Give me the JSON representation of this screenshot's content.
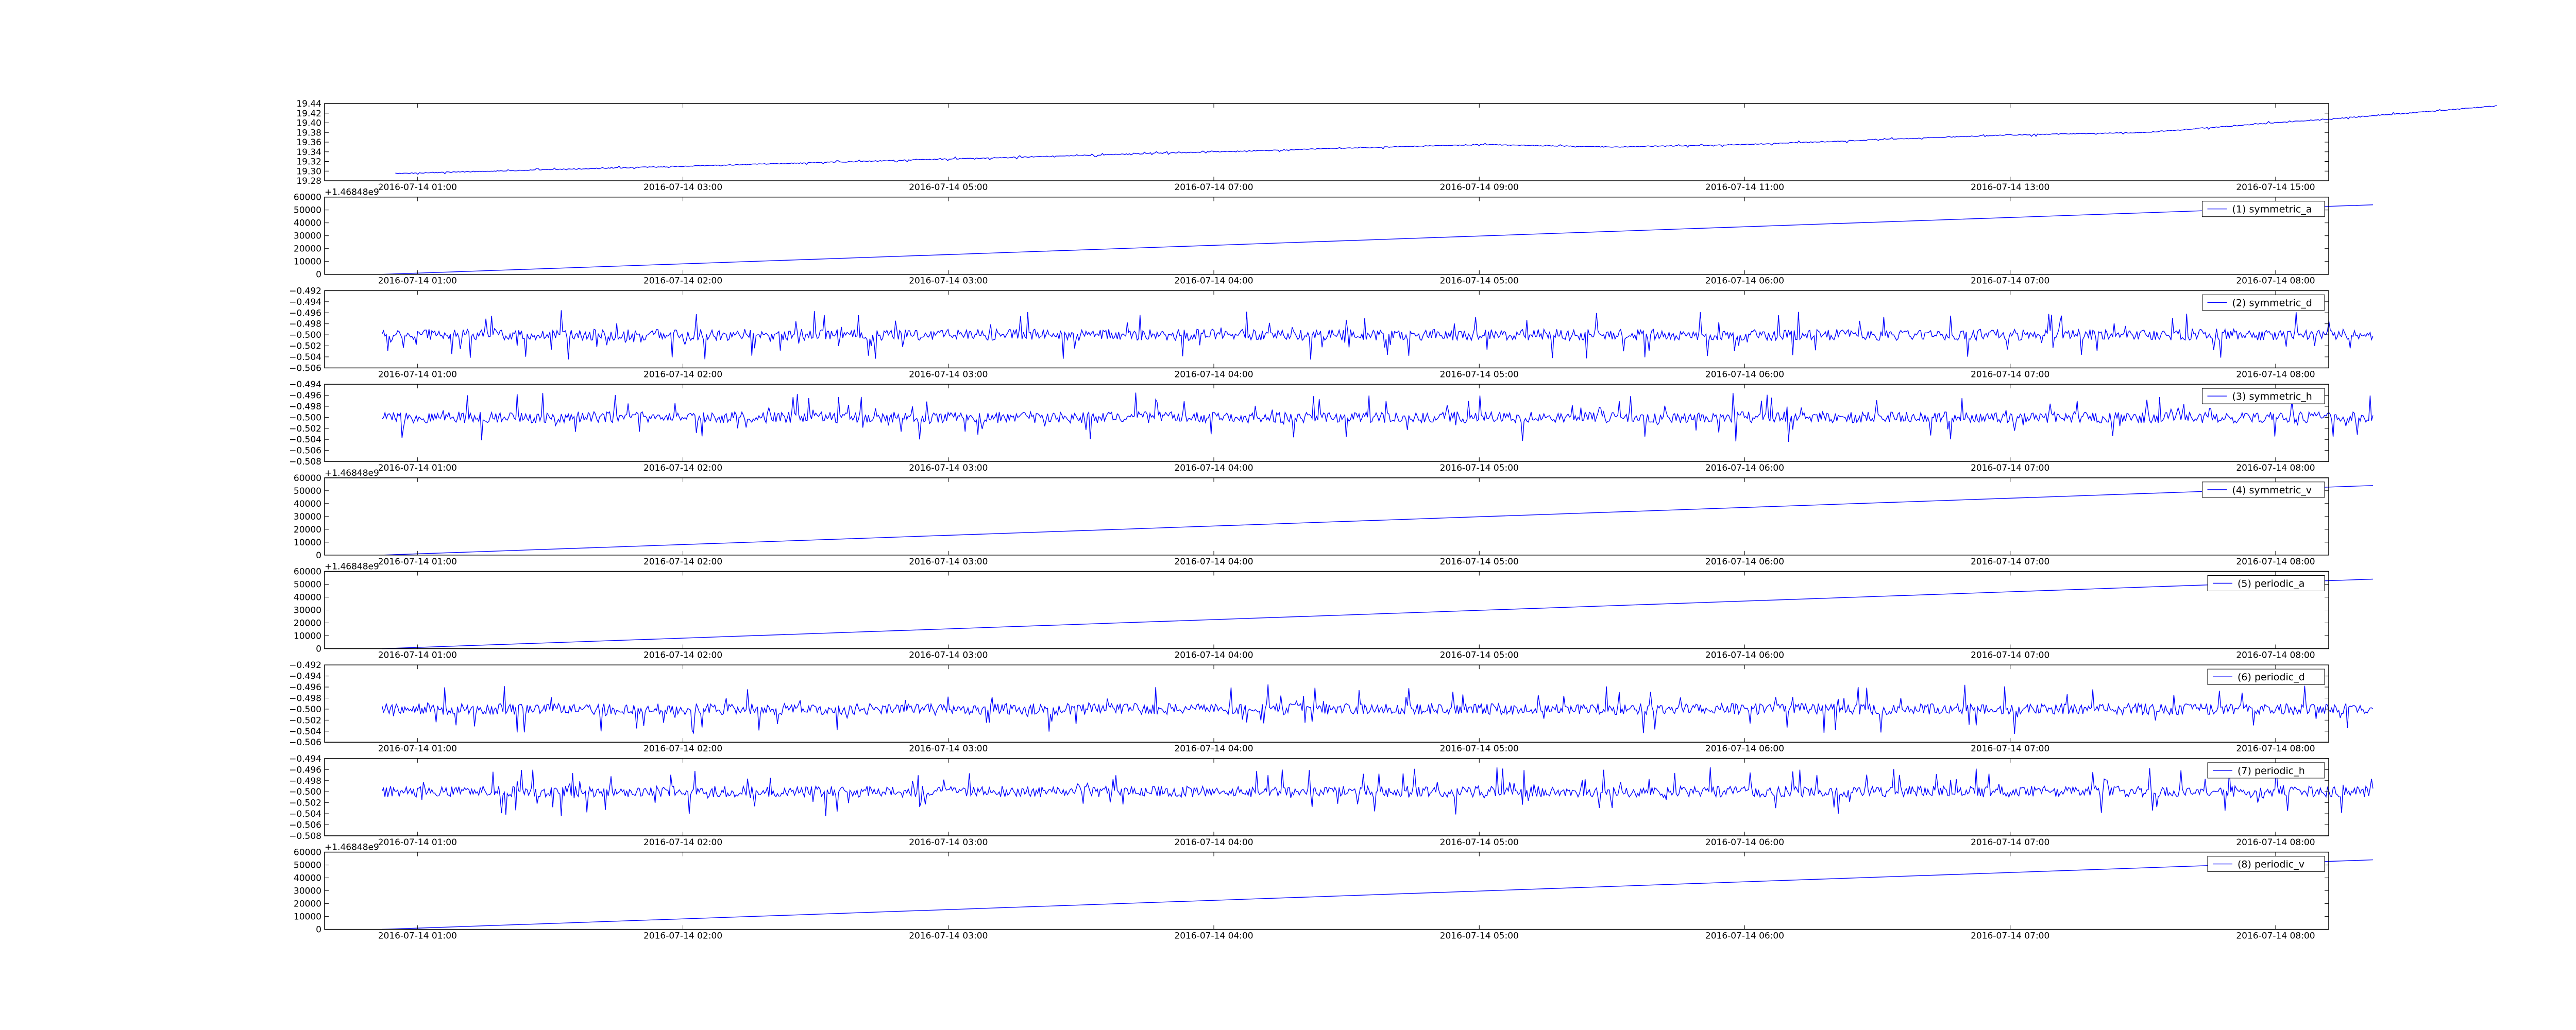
{
  "figure": {
    "line_color": "#0000ff",
    "axes_color": "#000000",
    "background": "#ffffff"
  },
  "chart_data": [
    {
      "type": "line",
      "legend": null,
      "legend_location": "none",
      "offset_text": "",
      "ylim": [
        19.28,
        19.44
      ],
      "yticks": [
        "19.28",
        "19.30",
        "19.32",
        "19.34",
        "19.36",
        "19.38",
        "19.40",
        "19.42",
        "19.44"
      ],
      "xticks": [
        "2016-07-14 01:00",
        "2016-07-14 03:00",
        "2016-07-14 05:00",
        "2016-07-14 07:00",
        "2016-07-14 09:00",
        "2016-07-14 11:00",
        "2016-07-14 13:00",
        "2016-07-14 15:00"
      ],
      "series": [
        {
          "x": [
            "2016-07-14 00:50",
            "2016-07-14 03:00",
            "2016-07-14 05:00",
            "2016-07-14 07:00",
            "2016-07-14 09:00",
            "2016-07-14 10:00",
            "2016-07-14 11:00",
            "2016-07-14 13:00",
            "2016-07-14 14:00",
            "2016-07-14 16:00",
            "2016-07-14 16:40"
          ],
          "y": [
            19.295,
            19.31,
            19.325,
            19.34,
            19.355,
            19.35,
            19.355,
            19.375,
            19.38,
            19.42,
            19.435
          ],
          "noise": 0.004
        }
      ]
    },
    {
      "type": "line",
      "legend": "(1) symmetric_a",
      "legend_location": "upper right",
      "offset_text": "+1.46848e9",
      "ylim": [
        0,
        60000
      ],
      "yticks": [
        "0",
        "10000",
        "20000",
        "30000",
        "40000",
        "50000",
        "60000"
      ],
      "xticks": [
        "2016-07-14 01:00",
        "2016-07-14 02:00",
        "2016-07-14 03:00",
        "2016-07-14 04:00",
        "2016-07-14 05:00",
        "2016-07-14 06:00",
        "2016-07-14 07:00",
        "2016-07-14 08:00"
      ],
      "series": [
        {
          "x": [
            "2016-07-14 00:52",
            "2016-07-14 08:22"
          ],
          "y": [
            0,
            54000
          ],
          "noise": 0
        }
      ]
    },
    {
      "type": "line",
      "legend": "(2) symmetric_d",
      "legend_location": "upper right",
      "offset_text": "",
      "ylim": [
        -0.506,
        -0.492
      ],
      "yticks": [
        "−0.506",
        "−0.504",
        "−0.502",
        "−0.500",
        "−0.498",
        "−0.496",
        "−0.494",
        "−0.492"
      ],
      "xticks": [
        "2016-07-14 01:00",
        "2016-07-14 02:00",
        "2016-07-14 03:00",
        "2016-07-14 04:00",
        "2016-07-14 05:00",
        "2016-07-14 06:00",
        "2016-07-14 07:00",
        "2016-07-14 08:00"
      ],
      "series": [
        {
          "x": [
            "2016-07-14 00:52",
            "2016-07-14 08:22"
          ],
          "y": [
            -0.5,
            -0.5
          ],
          "noise": 0.0045
        }
      ]
    },
    {
      "type": "line",
      "legend": "(3) symmetric_h",
      "legend_location": "upper right",
      "offset_text": "",
      "ylim": [
        -0.508,
        -0.494
      ],
      "yticks": [
        "−0.508",
        "−0.506",
        "−0.504",
        "−0.502",
        "−0.500",
        "−0.498",
        "−0.496",
        "−0.494"
      ],
      "xticks": [
        "2016-07-14 01:00",
        "2016-07-14 02:00",
        "2016-07-14 03:00",
        "2016-07-14 04:00",
        "2016-07-14 05:00",
        "2016-07-14 06:00",
        "2016-07-14 07:00",
        "2016-07-14 08:00"
      ],
      "series": [
        {
          "x": [
            "2016-07-14 00:52",
            "2016-07-14 08:22"
          ],
          "y": [
            -0.5,
            -0.5
          ],
          "noise": 0.0045
        }
      ]
    },
    {
      "type": "line",
      "legend": "(4) symmetric_v",
      "legend_location": "upper right",
      "offset_text": "+1.46848e9",
      "ylim": [
        0,
        60000
      ],
      "yticks": [
        "0",
        "10000",
        "20000",
        "30000",
        "40000",
        "50000",
        "60000"
      ],
      "xticks": [
        "2016-07-14 01:00",
        "2016-07-14 02:00",
        "2016-07-14 03:00",
        "2016-07-14 04:00",
        "2016-07-14 05:00",
        "2016-07-14 06:00",
        "2016-07-14 07:00",
        "2016-07-14 08:00"
      ],
      "series": [
        {
          "x": [
            "2016-07-14 00:52",
            "2016-07-14 08:22"
          ],
          "y": [
            0,
            54000
          ],
          "noise": 0
        }
      ]
    },
    {
      "type": "line",
      "legend": "(5) periodic_a",
      "legend_location": "upper right",
      "offset_text": "+1.46848e9",
      "ylim": [
        0,
        60000
      ],
      "yticks": [
        "0",
        "10000",
        "20000",
        "30000",
        "40000",
        "50000",
        "60000"
      ],
      "xticks": [
        "2016-07-14 01:00",
        "2016-07-14 02:00",
        "2016-07-14 03:00",
        "2016-07-14 04:00",
        "2016-07-14 05:00",
        "2016-07-14 06:00",
        "2016-07-14 07:00",
        "2016-07-14 08:00"
      ],
      "series": [
        {
          "x": [
            "2016-07-14 00:52",
            "2016-07-14 08:22"
          ],
          "y": [
            0,
            54000
          ],
          "noise": 0
        }
      ]
    },
    {
      "type": "line",
      "legend": "(6) periodic_d",
      "legend_location": "upper right",
      "offset_text": "",
      "ylim": [
        -0.506,
        -0.492
      ],
      "yticks": [
        "−0.506",
        "−0.504",
        "−0.502",
        "−0.500",
        "−0.498",
        "−0.496",
        "−0.494",
        "−0.492"
      ],
      "xticks": [
        "2016-07-14 01:00",
        "2016-07-14 02:00",
        "2016-07-14 03:00",
        "2016-07-14 04:00",
        "2016-07-14 05:00",
        "2016-07-14 06:00",
        "2016-07-14 07:00",
        "2016-07-14 08:00"
      ],
      "series": [
        {
          "x": [
            "2016-07-14 00:52",
            "2016-07-14 08:22"
          ],
          "y": [
            -0.5,
            -0.5
          ],
          "noise": 0.0045
        }
      ]
    },
    {
      "type": "line",
      "legend": "(7) periodic_h",
      "legend_location": "upper right",
      "offset_text": "",
      "ylim": [
        -0.508,
        -0.494
      ],
      "yticks": [
        "−0.508",
        "−0.506",
        "−0.504",
        "−0.502",
        "−0.500",
        "−0.498",
        "−0.496",
        "−0.494"
      ],
      "xticks": [
        "2016-07-14 01:00",
        "2016-07-14 02:00",
        "2016-07-14 03:00",
        "2016-07-14 04:00",
        "2016-07-14 05:00",
        "2016-07-14 06:00",
        "2016-07-14 07:00",
        "2016-07-14 08:00"
      ],
      "series": [
        {
          "x": [
            "2016-07-14 00:52",
            "2016-07-14 08:22"
          ],
          "y": [
            -0.5,
            -0.5
          ],
          "noise": 0.0045
        }
      ]
    },
    {
      "type": "line",
      "legend": "(8) periodic_v",
      "legend_location": "upper right",
      "offset_text": "+1.46848e9",
      "ylim": [
        0,
        60000
      ],
      "yticks": [
        "0",
        "10000",
        "20000",
        "30000",
        "40000",
        "50000",
        "60000"
      ],
      "xticks": [
        "2016-07-14 01:00",
        "2016-07-14 02:00",
        "2016-07-14 03:00",
        "2016-07-14 04:00",
        "2016-07-14 05:00",
        "2016-07-14 06:00",
        "2016-07-14 07:00",
        "2016-07-14 08:00"
      ],
      "series": [
        {
          "x": [
            "2016-07-14 00:52",
            "2016-07-14 08:22"
          ],
          "y": [
            0,
            54000
          ],
          "noise": 0
        }
      ]
    }
  ]
}
